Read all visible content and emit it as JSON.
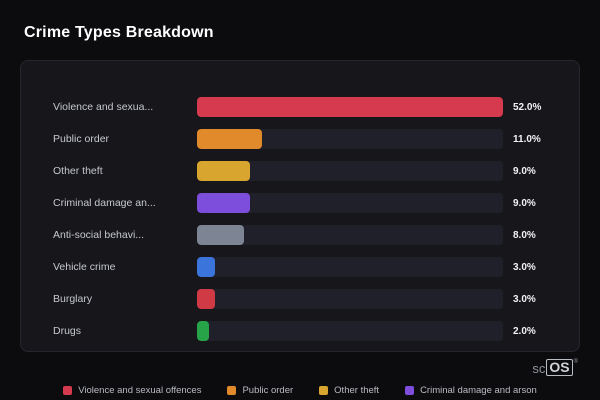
{
  "page": {
    "title": "Crime Types Breakdown",
    "watermark": {
      "prefix": "sc",
      "suffix": "OS",
      "reg": "®"
    }
  },
  "chart_data": {
    "type": "bar",
    "orientation": "horizontal",
    "title": "Crime Types Breakdown",
    "categories": [
      "Violence and sexual offences",
      "Public order",
      "Other theft",
      "Criminal damage and arson",
      "Anti-social behaviour",
      "Vehicle crime",
      "Burglary",
      "Drugs"
    ],
    "display_labels": [
      "Violence and sexua...",
      "Public order",
      "Other theft",
      "Criminal damage an...",
      "Anti-social behavi...",
      "Vehicle crime",
      "Burglary",
      "Drugs"
    ],
    "values": [
      52.0,
      11.0,
      9.0,
      9.0,
      8.0,
      3.0,
      3.0,
      2.0
    ],
    "value_labels": [
      "52.0%",
      "11.0%",
      "9.0%",
      "9.0%",
      "8.0%",
      "3.0%",
      "3.0%",
      "2.0%"
    ],
    "colors": [
      "#d53a4f",
      "#e08a2c",
      "#d8a62e",
      "#7d4ddc",
      "#7d8595",
      "#3b74da",
      "#d03a44",
      "#27a348"
    ],
    "xlim": [
      0,
      52
    ],
    "grid": false,
    "legend_position": "bottom",
    "legend": [
      {
        "label": "Violence and sexual offences",
        "color": "#d53a4f"
      },
      {
        "label": "Public order",
        "color": "#e08a2c"
      },
      {
        "label": "Other theft",
        "color": "#d8a62e"
      },
      {
        "label": "Criminal damage and arson",
        "color": "#7d4ddc"
      }
    ]
  }
}
